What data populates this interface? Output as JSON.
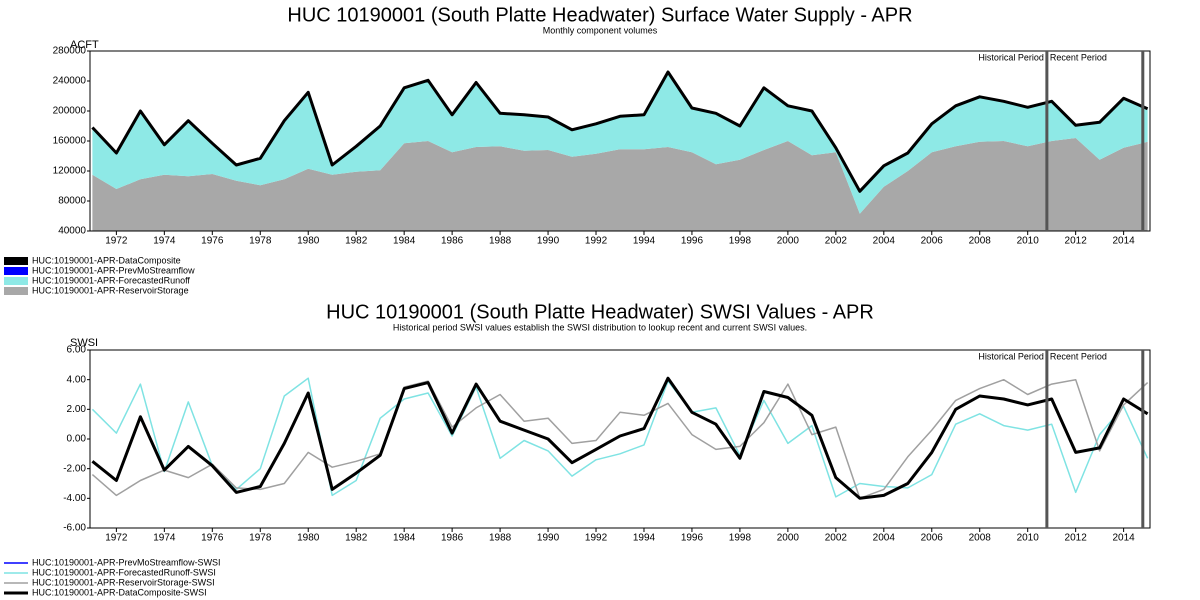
{
  "chart_data": [
    {
      "type": "area",
      "title": "HUC 10190001 (South Platte Headwater) Surface Water Supply - APR",
      "subtitle": "Monthly component volumes",
      "y_label": "ACFT",
      "x": [
        1971,
        1972,
        1973,
        1974,
        1975,
        1976,
        1977,
        1978,
        1979,
        1980,
        1981,
        1982,
        1983,
        1984,
        1985,
        1986,
        1987,
        1988,
        1989,
        1990,
        1991,
        1992,
        1993,
        1994,
        1995,
        1996,
        1997,
        1998,
        1999,
        2000,
        2001,
        2002,
        2003,
        2004,
        2005,
        2006,
        2007,
        2008,
        2009,
        2010,
        2011,
        2012,
        2013,
        2014,
        2015
      ],
      "xlim": [
        1970.9,
        2015.1
      ],
      "xticks": [
        1972,
        1974,
        1976,
        1978,
        1980,
        1982,
        1984,
        1986,
        1988,
        1990,
        1992,
        1994,
        1996,
        1998,
        2000,
        2002,
        2004,
        2006,
        2008,
        2010,
        2012,
        2014
      ],
      "ylim": [
        40000,
        280000
      ],
      "yticks": [
        40000,
        80000,
        120000,
        160000,
        200000,
        240000,
        280000
      ],
      "period_lines": [
        2010.8,
        2014.8
      ],
      "period_labels": [
        "Historical Period",
        "Recent Period"
      ],
      "series": [
        {
          "name": "HUC:10190001-APR-DataComposite",
          "type": "line",
          "color": "#000000",
          "values": [
            178000,
            144000,
            200000,
            155000,
            187000,
            157000,
            128000,
            137000,
            187000,
            225000,
            128000,
            153000,
            180000,
            231000,
            241000,
            195000,
            238000,
            197000,
            195000,
            192000,
            175000,
            183000,
            193000,
            195000,
            252000,
            204000,
            197000,
            180000,
            231000,
            207000,
            200000,
            151000,
            93000,
            127000,
            144000,
            183000,
            207000,
            219000,
            213000,
            205000,
            213000,
            181000,
            185000,
            217000,
            203000
          ]
        },
        {
          "name": "HUC:10190001-APR-PrevMoStreamflow",
          "type": "area",
          "color": "#0000ff",
          "values": [
            0,
            0,
            0,
            0,
            0,
            0,
            0,
            0,
            0,
            0,
            0,
            0,
            0,
            0,
            0,
            0,
            0,
            0,
            0,
            0,
            0,
            0,
            0,
            0,
            0,
            0,
            0,
            0,
            0,
            0,
            0,
            0,
            0,
            0,
            0,
            0,
            0,
            0,
            0,
            0,
            0,
            0,
            0,
            0,
            0
          ]
        },
        {
          "name": "HUC:10190001-APR-ForecastedRunoff",
          "type": "area",
          "color": "#8ee9e6",
          "values": [
            63000,
            48000,
            91000,
            40000,
            74000,
            41000,
            21000,
            36000,
            78000,
            102000,
            13000,
            34000,
            59000,
            74000,
            81000,
            50000,
            86000,
            44000,
            48000,
            44000,
            36000,
            40000,
            44000,
            46000,
            100000,
            59000,
            68000,
            45000,
            83000,
            47000,
            59000,
            6000,
            30000,
            28000,
            24000,
            38000,
            54000,
            60000,
            53000,
            52000,
            53000,
            17000,
            50000,
            66000,
            44000
          ]
        },
        {
          "name": "HUC:10190001-APR-ReservoirStorage",
          "type": "area",
          "color": "#a8a8a8",
          "values": [
            115000,
            96000,
            109000,
            115000,
            113000,
            116000,
            107000,
            101000,
            109000,
            123000,
            115000,
            119000,
            121000,
            157000,
            160000,
            145000,
            152000,
            153000,
            147000,
            148000,
            139000,
            143000,
            149000,
            149000,
            152000,
            145000,
            129000,
            135000,
            148000,
            160000,
            141000,
            145000,
            63000,
            99000,
            120000,
            145000,
            153000,
            159000,
            160000,
            153000,
            160000,
            164000,
            135000,
            151000,
            159000
          ]
        }
      ]
    },
    {
      "type": "line",
      "title": "HUC 10190001 (South Platte Headwater) SWSI Values - APR",
      "subtitle": "Historical period SWSI values establish the SWSI distribution to lookup recent and current SWSI values.",
      "y_label": "SWSI",
      "x": [
        1971,
        1972,
        1973,
        1974,
        1975,
        1976,
        1977,
        1978,
        1979,
        1980,
        1981,
        1982,
        1983,
        1984,
        1985,
        1986,
        1987,
        1988,
        1989,
        1990,
        1991,
        1992,
        1993,
        1994,
        1995,
        1996,
        1997,
        1998,
        1999,
        2000,
        2001,
        2002,
        2003,
        2004,
        2005,
        2006,
        2007,
        2008,
        2009,
        2010,
        2011,
        2012,
        2013,
        2014,
        2015
      ],
      "xlim": [
        1970.9,
        2015.1
      ],
      "xticks": [
        1972,
        1974,
        1976,
        1978,
        1980,
        1982,
        1984,
        1986,
        1988,
        1990,
        1992,
        1994,
        1996,
        1998,
        2000,
        2002,
        2004,
        2006,
        2008,
        2010,
        2012,
        2014
      ],
      "ylim": [
        -6,
        6
      ],
      "yticks": [
        {
          "value": -6,
          "label": "-6.00"
        },
        {
          "value": -4,
          "label": "-4.00"
        },
        {
          "value": -2,
          "label": "-2.00"
        },
        {
          "value": 0,
          "label": "0.00"
        },
        {
          "value": 2,
          "label": "2.00"
        },
        {
          "value": 4,
          "label": "4.00"
        },
        {
          "value": 6,
          "label": "6.00"
        }
      ],
      "period_lines": [
        2010.8,
        2014.8
      ],
      "period_labels": [
        "Historical Period",
        "Recent Period"
      ],
      "series": [
        {
          "name": "HUC:10190001-APR-PrevMoStreamflow-SWSI",
          "color": "#0000ff",
          "values": [
            null,
            null,
            null,
            null,
            null,
            null,
            null,
            null,
            null,
            null,
            null,
            null,
            null,
            null,
            null,
            null,
            null,
            null,
            null,
            null,
            null,
            null,
            null,
            null,
            null,
            null,
            null,
            null,
            null,
            null,
            null,
            null,
            null,
            null,
            null,
            null,
            null,
            null,
            null,
            null,
            null,
            null,
            null,
            null,
            null
          ]
        },
        {
          "name": "HUC:10190001-APR-ForecastedRunoff-SWSI",
          "color": "#7fe3e3",
          "values": [
            2.0,
            0.4,
            3.7,
            -2.2,
            2.5,
            -1.8,
            -3.4,
            -2.0,
            2.9,
            4.1,
            -3.8,
            -2.8,
            1.4,
            2.7,
            3.1,
            0.2,
            3.5,
            -1.3,
            -0.1,
            -0.8,
            -2.5,
            -1.4,
            -1.0,
            -0.4,
            3.9,
            1.8,
            2.1,
            -1.1,
            2.6,
            -0.3,
            0.9,
            -3.9,
            -3.0,
            -3.2,
            -3.3,
            -2.4,
            1.0,
            1.7,
            0.9,
            0.6,
            1.0,
            -3.6,
            0.3,
            2.2,
            -1.3
          ]
        },
        {
          "name": "HUC:10190001-APR-ReservoirStorage-SWSI",
          "color": "#a0a0a0",
          "values": [
            -2.4,
            -3.8,
            -2.8,
            -2.1,
            -2.6,
            -1.7,
            -3.3,
            -3.4,
            -3.0,
            -0.9,
            -1.9,
            -1.5,
            -1.0,
            3.5,
            3.9,
            0.8,
            2.1,
            3.0,
            1.2,
            1.4,
            -0.3,
            -0.1,
            1.8,
            1.6,
            2.4,
            0.3,
            -0.7,
            -0.5,
            1.1,
            3.7,
            0.3,
            0.8,
            -4.0,
            -3.4,
            -1.2,
            0.6,
            2.6,
            3.4,
            4.0,
            3.0,
            3.7,
            4.0,
            -0.8,
            2.3,
            3.8
          ]
        },
        {
          "name": "HUC:10190001-APR-DataComposite-SWSI",
          "color": "#000000",
          "values": [
            -1.5,
            -2.8,
            1.5,
            -2.1,
            -0.5,
            -1.8,
            -3.6,
            -3.2,
            -0.3,
            3.1,
            -3.4,
            -2.3,
            -1.1,
            3.4,
            3.8,
            0.4,
            3.7,
            1.2,
            0.6,
            0.0,
            -1.6,
            -0.7,
            0.2,
            0.7,
            4.1,
            1.8,
            1.0,
            -1.3,
            3.2,
            2.8,
            1.6,
            -2.6,
            -4.0,
            -3.8,
            -3.0,
            -0.9,
            2.0,
            2.9,
            2.7,
            2.3,
            2.7,
            -0.9,
            -0.6,
            2.7,
            1.7
          ]
        }
      ]
    }
  ]
}
